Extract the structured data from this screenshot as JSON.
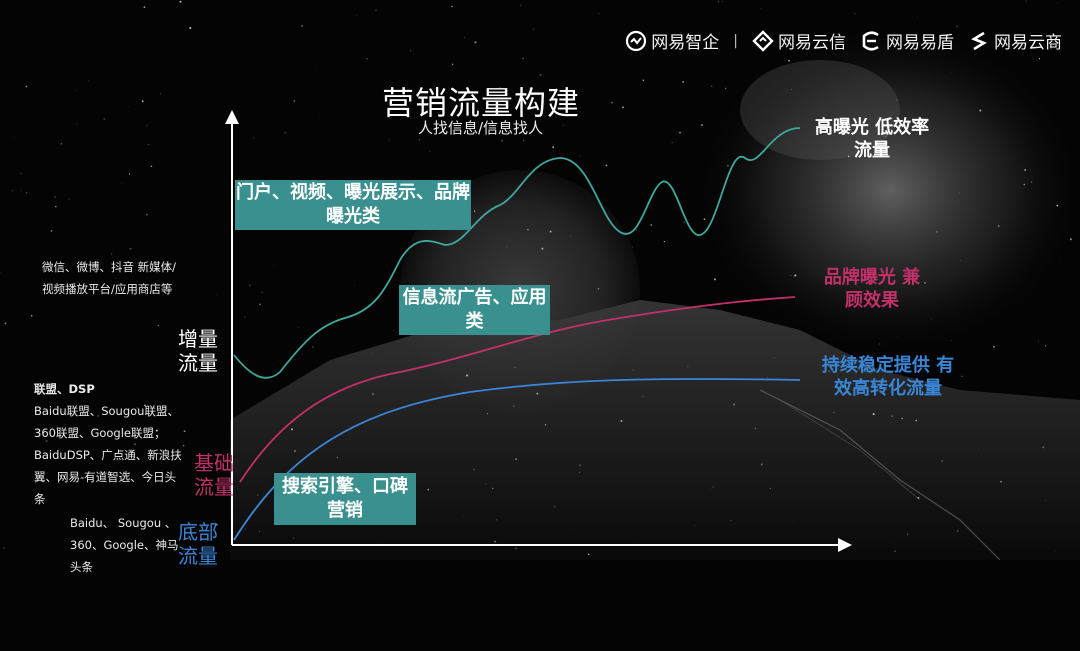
{
  "logos": [
    {
      "name": "网易智企",
      "icon": "wangyi-zhiqi-logo"
    },
    {
      "name": "网易云信",
      "icon": "wangyi-yunxin-logo"
    },
    {
      "name": "网易易盾",
      "icon": "wangyi-yidun-logo"
    },
    {
      "name": "网易云商",
      "icon": "wangyi-yunshang-logo"
    }
  ],
  "separator": "|",
  "title": "营销流量构建",
  "subtitle": "人找信息/信息找人",
  "boxes": {
    "portal": "门户、视频、曝光展示、品牌曝光类",
    "feed": "信息流广告、应用类",
    "search": "搜索引擎、口碑营销"
  },
  "left_notes": {
    "social": "微信、微博、抖音 新媒体/视频播放平台/应用商店等",
    "union_head": "联盟、DSP",
    "union_body": "Baidu联盟、Sougou联盟、360联盟、Google联盟；BaiduDSP、广点通、新浪扶翼、网易-有道智选、今日头条",
    "base": "Baidu、 Sougou 、360、Google、神马头条"
  },
  "axis_labels": {
    "increment": "增量 流量",
    "basic": "基础 流量",
    "bottom": "底部 流量"
  },
  "right_labels": {
    "high": "高曝光 低效率流量",
    "brand": "品牌曝光 兼顾效果",
    "steady": "持续稳定提供 有效高转化流量"
  },
  "colors": {
    "teal_box": "#3a8f8f",
    "teal_line": "#3fa89e",
    "pink": "#c2306a",
    "blue": "#3a86d6"
  }
}
